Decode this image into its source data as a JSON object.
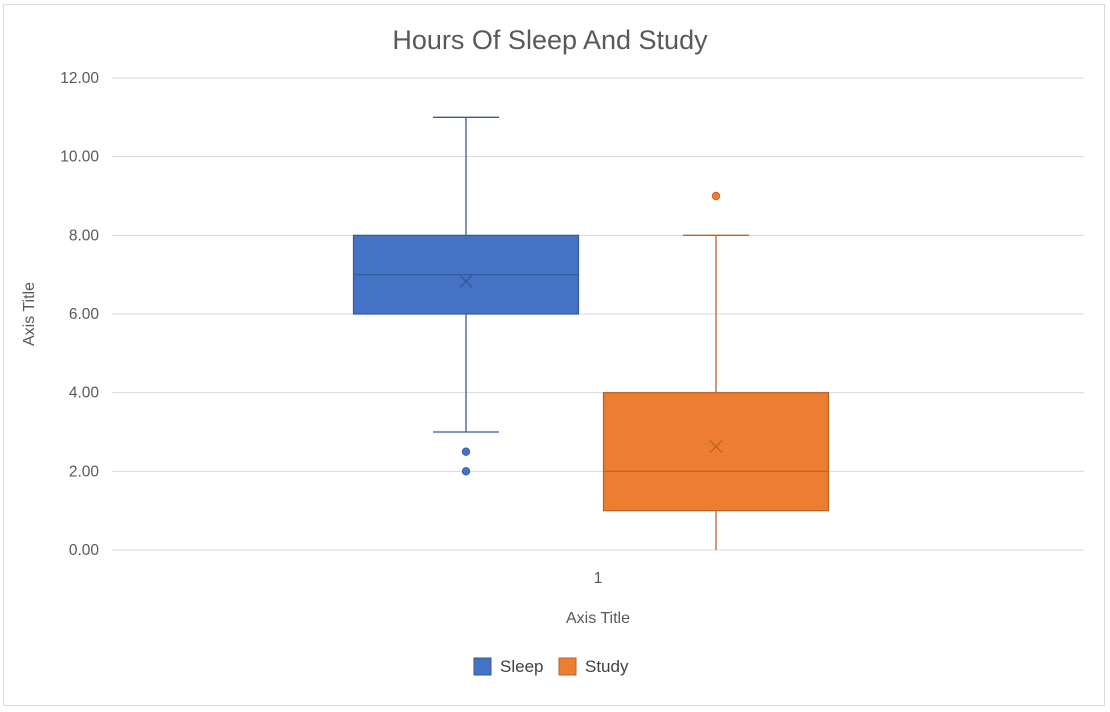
{
  "chart_data": {
    "type": "box",
    "title": "Hours Of Sleep And Study",
    "xlabel": "Axis Title",
    "ylabel": "Axis Title",
    "categories": [
      "1"
    ],
    "ylim": [
      0,
      12
    ],
    "yticks": [
      0,
      2,
      4,
      6,
      8,
      10,
      12
    ],
    "ytick_labels": [
      "0.00",
      "2.00",
      "4.00",
      "6.00",
      "8.00",
      "10.00",
      "12.00"
    ],
    "grid": true,
    "legend_position": "bottom",
    "series": [
      {
        "name": "Sleep",
        "color": "#4472C4",
        "whisker_min": 3,
        "q1": 6,
        "median": 7,
        "q3": 8,
        "whisker_max": 11,
        "mean": 6.83,
        "outliers": [
          2.5,
          2
        ]
      },
      {
        "name": "Study",
        "color": "#ED7D31",
        "whisker_min": 0,
        "q1": 1,
        "median": 2,
        "q3": 4,
        "whisker_max": 8,
        "mean": 2.63,
        "outliers": [
          9
        ]
      }
    ]
  }
}
